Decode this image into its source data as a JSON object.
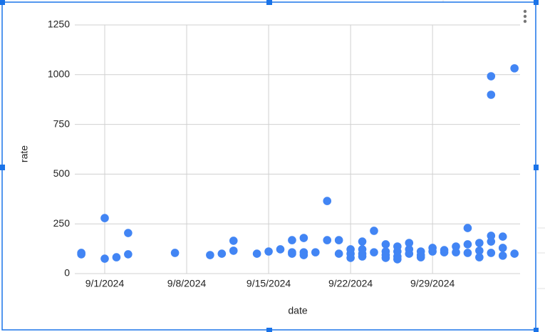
{
  "chart_data": {
    "type": "scatter",
    "x_label": "date",
    "y_label": "rate",
    "color": "#4285f4",
    "grid": true,
    "x": [
      "2024-08-30",
      "2024-08-30",
      "2024-09-01",
      "2024-09-01",
      "2024-09-02",
      "2024-09-03",
      "2024-09-03",
      "2024-09-07",
      "2024-09-10",
      "2024-09-11",
      "2024-09-12",
      "2024-09-12",
      "2024-09-14",
      "2024-09-15",
      "2024-09-16",
      "2024-09-17",
      "2024-09-17",
      "2024-09-17",
      "2024-09-18",
      "2024-09-18",
      "2024-09-18",
      "2024-09-19",
      "2024-09-20",
      "2024-09-20",
      "2024-09-21",
      "2024-09-21",
      "2024-09-22",
      "2024-09-22",
      "2024-09-22",
      "2024-09-23",
      "2024-09-23",
      "2024-09-23",
      "2024-09-23",
      "2024-09-24",
      "2024-09-24",
      "2024-09-25",
      "2024-09-25",
      "2024-09-25",
      "2024-09-25",
      "2024-09-26",
      "2024-09-26",
      "2024-09-26",
      "2024-09-26",
      "2024-09-27",
      "2024-09-27",
      "2024-09-27",
      "2024-09-28",
      "2024-09-28",
      "2024-09-28",
      "2024-09-29",
      "2024-09-29",
      "2024-09-30",
      "2024-09-30",
      "2024-10-01",
      "2024-10-01",
      "2024-10-02",
      "2024-10-02",
      "2024-10-02",
      "2024-10-03",
      "2024-10-03",
      "2024-10-03",
      "2024-10-04",
      "2024-10-04",
      "2024-10-04",
      "2024-10-04",
      "2024-10-04",
      "2024-10-05",
      "2024-10-05",
      "2024-10-05",
      "2024-10-06",
      "2024-10-06"
    ],
    "values": [
      104,
      97,
      279,
      75,
      82,
      204,
      97,
      104,
      93,
      100,
      165,
      115,
      100,
      111,
      122,
      168,
      107,
      100,
      179,
      107,
      93,
      107,
      365,
      168,
      168,
      100,
      122,
      100,
      79,
      161,
      122,
      100,
      86,
      215,
      107,
      147,
      111,
      93,
      79,
      136,
      111,
      86,
      72,
      154,
      122,
      100,
      111,
      93,
      82,
      129,
      111,
      118,
      107,
      136,
      107,
      229,
      147,
      104,
      154,
      115,
      82,
      992,
      899,
      190,
      161,
      104,
      186,
      129,
      90,
      1032,
      100
    ],
    "xlim": [
      "2024-08-29",
      "2024-10-07"
    ],
    "xticks": [
      {
        "value": "2024-09-01",
        "label": "9/1/2024"
      },
      {
        "value": "2024-09-08",
        "label": "9/8/2024"
      },
      {
        "value": "2024-09-15",
        "label": "9/15/2024"
      },
      {
        "value": "2024-09-22",
        "label": "9/22/2024"
      },
      {
        "value": "2024-09-29",
        "label": "9/29/2024"
      }
    ],
    "ylim": [
      0,
      1250
    ],
    "yticks": [
      0,
      250,
      500,
      750,
      1000,
      1250
    ]
  }
}
